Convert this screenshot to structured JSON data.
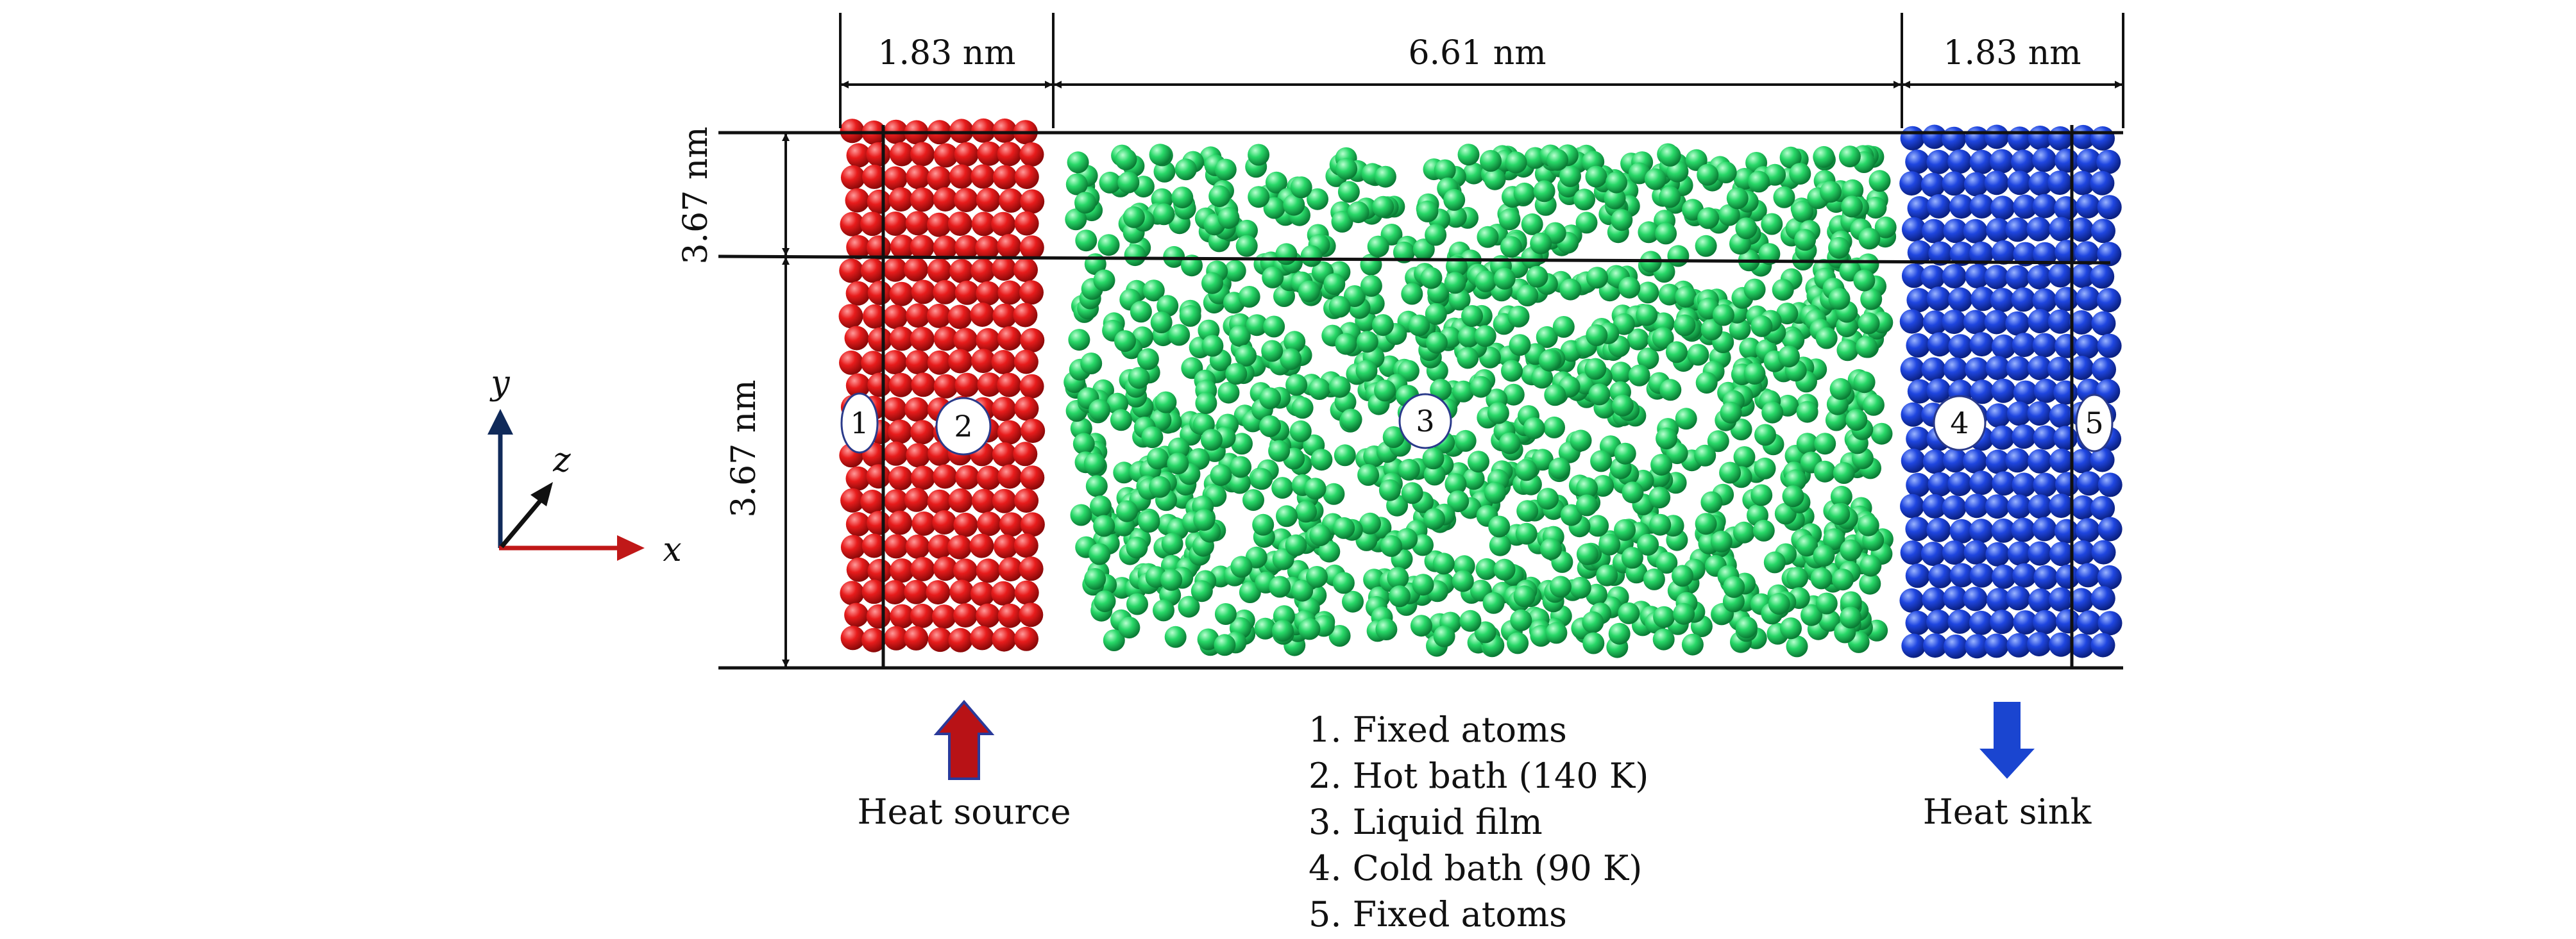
{
  "dimensions": {
    "left_bath_width": "1.83 nm",
    "film_width": "6.61 nm",
    "right_bath_width": "1.83 nm",
    "upper_height": "3.67 nm",
    "lower_height": "3.67 nm"
  },
  "axes": {
    "x": "x",
    "y": "y",
    "z": "z"
  },
  "zones": [
    {
      "number": "1",
      "color": "#e0141a"
    },
    {
      "number": "2",
      "color": "#e0141a"
    },
    {
      "number": "3",
      "color": "#22d466"
    },
    {
      "number": "4",
      "color": "#1a3fd6"
    },
    {
      "number": "5",
      "color": "#1a3fd6"
    }
  ],
  "heat_source": {
    "label": "Heat source",
    "color": "#c0141a"
  },
  "heat_sink": {
    "label": "Heat sink",
    "color": "#1a45d0"
  },
  "legend": [
    "1. Fixed atoms",
    "2. Hot bath (140 K)",
    "3. Liquid film",
    "4. Cold bath (90 K)",
    "5. Fixed atoms"
  ]
}
